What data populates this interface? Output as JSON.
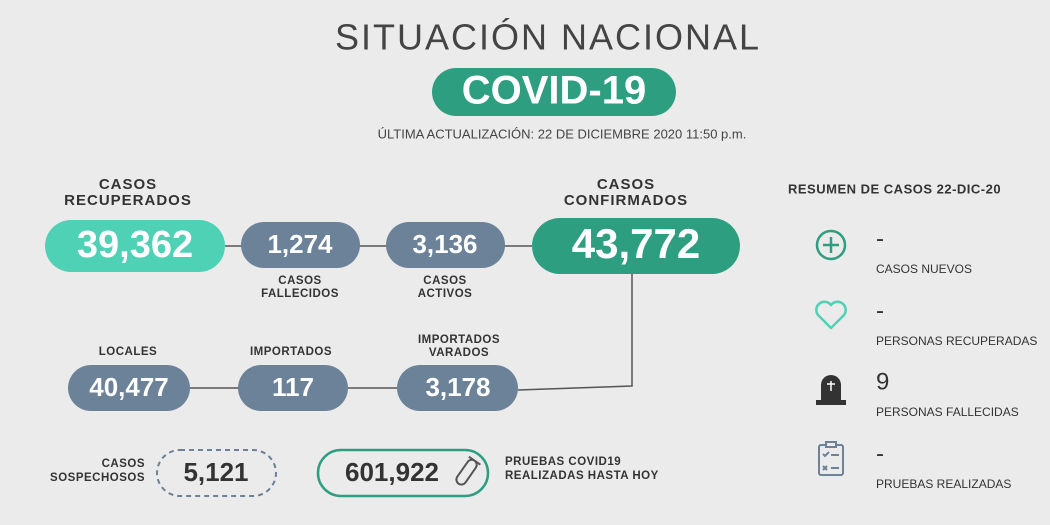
{
  "header": {
    "title": "SITUACIÓN NACIONAL",
    "badge": "COVID-19",
    "updated": "ÚLTIMA ACTUALIZACIÓN: 22 DE DICIEMBRE 2020 11:50 p.m."
  },
  "row1": {
    "recovered": {
      "label": [
        "CASOS",
        "RECUPERADOS"
      ],
      "value": "39,362"
    },
    "deaths": {
      "label": [
        "CASOS",
        "FALLECIDOS"
      ],
      "value": "1,274"
    },
    "active": {
      "label": [
        "CASOS",
        "ACTIVOS"
      ],
      "value": "3,136"
    },
    "confirmed": {
      "label": [
        "CASOS",
        "CONFIRMADOS"
      ],
      "value": "43,772"
    }
  },
  "row2": {
    "local": {
      "label": [
        "LOCALES"
      ],
      "value": "40,477"
    },
    "imported": {
      "label": [
        "IMPORTADOS"
      ],
      "value": "117"
    },
    "stranded": {
      "label": [
        "IMPORTADOS",
        "VARADOS"
      ],
      "value": "3,178"
    }
  },
  "row3": {
    "suspected": {
      "label": [
        "CASOS",
        "SOSPECHOSOS"
      ],
      "value": "5,121"
    },
    "tests": {
      "label": [
        "PRUEBAS COVID19",
        "REALIZADAS HASTA HOY"
      ],
      "value": "601,922"
    }
  },
  "summary": {
    "title": "RESUMEN DE CASOS 22-DIC-20",
    "items": [
      {
        "value": "-",
        "label": "CASOS NUEVOS"
      },
      {
        "value": "-",
        "label": "PERSONAS RECUPERADAS"
      },
      {
        "value": "9",
        "label": "PERSONAS FALLECIDAS"
      },
      {
        "value": "-",
        "label": "PRUEBAS REALIZADAS"
      }
    ]
  }
}
